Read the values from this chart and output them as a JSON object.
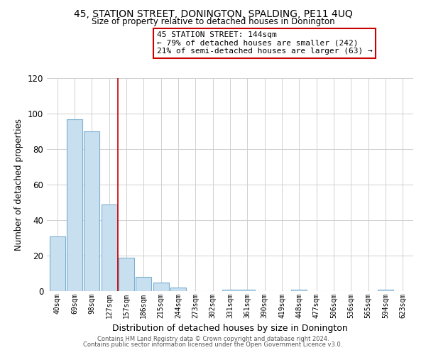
{
  "title": "45, STATION STREET, DONINGTON, SPALDING, PE11 4UQ",
  "subtitle": "Size of property relative to detached houses in Donington",
  "xlabel": "Distribution of detached houses by size in Donington",
  "ylabel": "Number of detached properties",
  "bar_labels": [
    "40sqm",
    "69sqm",
    "98sqm",
    "127sqm",
    "157sqm",
    "186sqm",
    "215sqm",
    "244sqm",
    "273sqm",
    "302sqm",
    "331sqm",
    "361sqm",
    "390sqm",
    "419sqm",
    "448sqm",
    "477sqm",
    "506sqm",
    "536sqm",
    "565sqm",
    "594sqm",
    "623sqm"
  ],
  "bar_values": [
    31,
    97,
    90,
    49,
    19,
    8,
    5,
    2,
    0,
    0,
    1,
    1,
    0,
    0,
    1,
    0,
    0,
    0,
    0,
    1,
    0
  ],
  "bar_color": "#c8dff0",
  "bar_edge_color": "#7ab0d0",
  "ylim": [
    0,
    120
  ],
  "yticks": [
    0,
    20,
    40,
    60,
    80,
    100,
    120
  ],
  "annotation_title": "45 STATION STREET: 144sqm",
  "annotation_line1": "← 79% of detached houses are smaller (242)",
  "annotation_line2": "21% of semi-detached houses are larger (63) →",
  "annotation_box_color": "#ffffff",
  "annotation_box_edge": "#cc0000",
  "vline_color": "#cc0000",
  "vline_x": 3.5,
  "footer_line1": "Contains HM Land Registry data © Crown copyright and database right 2024.",
  "footer_line2": "Contains public sector information licensed under the Open Government Licence v3.0.",
  "background_color": "#ffffff",
  "grid_color": "#d0d0d0"
}
